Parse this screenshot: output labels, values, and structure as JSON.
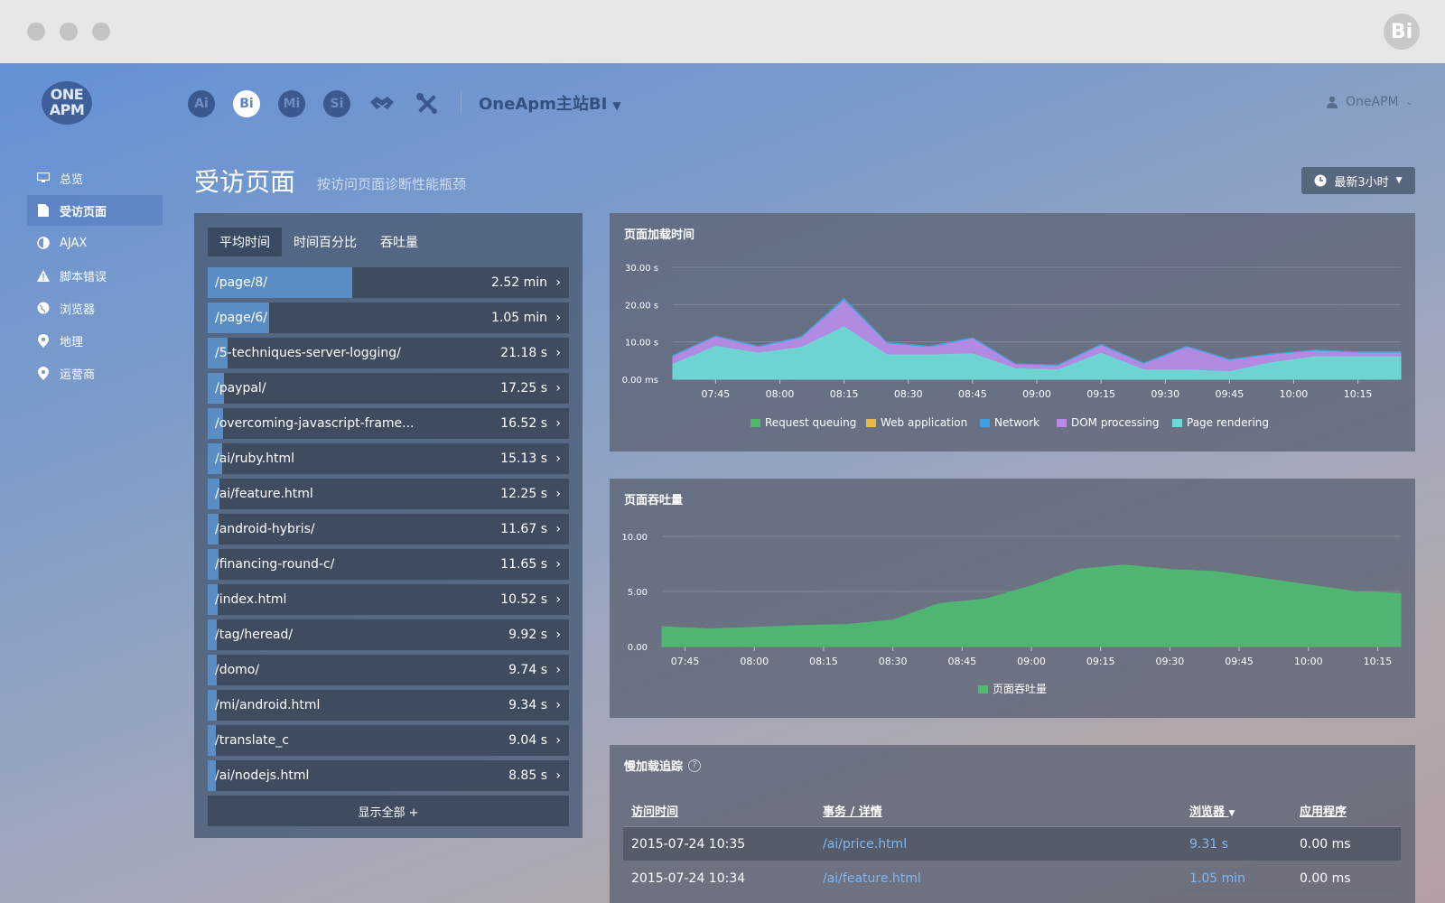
{
  "window": {
    "badge": "Bi"
  },
  "logo": {
    "line1": "ONE",
    "line2": "APM"
  },
  "product_nav": {
    "items": [
      {
        "label": "Ai",
        "icon": "ai-icon",
        "active": false
      },
      {
        "label": "Bi",
        "icon": "bi-icon",
        "active": true
      },
      {
        "label": "Mi",
        "icon": "mi-icon",
        "active": false
      },
      {
        "label": "Si",
        "icon": "si-icon",
        "active": false
      }
    ],
    "app_name": "OneApm主站BI"
  },
  "user": {
    "name": "OneAPM"
  },
  "sidebar": {
    "items": [
      {
        "label": "总览",
        "icon": "monitor-icon",
        "active": false
      },
      {
        "label": "受访页面",
        "icon": "document-icon",
        "active": true
      },
      {
        "label": "AJAX",
        "icon": "half-circle-icon",
        "active": false
      },
      {
        "label": "脚本错误",
        "icon": "warning-icon",
        "active": false
      },
      {
        "label": "浏览器",
        "icon": "globe-icon",
        "active": false
      },
      {
        "label": "地理",
        "icon": "map-pin-icon",
        "active": false
      },
      {
        "label": "运营商",
        "icon": "map-pin-icon",
        "active": false
      }
    ]
  },
  "page": {
    "title": "受访页面",
    "subtitle": "按访问页面诊断性能瓶颈",
    "time_range": "最新3小时"
  },
  "left_panel": {
    "tabs": [
      "平均时间",
      "时间百分比",
      "吞吐量"
    ],
    "active_tab": 0,
    "rows": [
      {
        "path": "/page/8/",
        "value": "2.52 min",
        "fill": 0.4
      },
      {
        "path": "/page/6/",
        "value": "1.05 min",
        "fill": 0.17
      },
      {
        "path": "/5-techniques-server-logging/",
        "value": "21.18 s",
        "fill": 0.055
      },
      {
        "path": "/paypal/",
        "value": "17.25 s",
        "fill": 0.045
      },
      {
        "path": "/overcoming-javascript-frame...",
        "value": "16.52 s",
        "fill": 0.043
      },
      {
        "path": "/ai/ruby.html",
        "value": "15.13 s",
        "fill": 0.04
      },
      {
        "path": "/ai/feature.html",
        "value": "12.25 s",
        "fill": 0.032
      },
      {
        "path": "/android-hybris/",
        "value": "11.67 s",
        "fill": 0.03
      },
      {
        "path": "/financing-round-c/",
        "value": "11.65 s",
        "fill": 0.03
      },
      {
        "path": "/index.html",
        "value": "10.52 s",
        "fill": 0.027
      },
      {
        "path": "/tag/heread/",
        "value": "9.92 s",
        "fill": 0.026
      },
      {
        "path": "/domo/",
        "value": "9.74 s",
        "fill": 0.025
      },
      {
        "path": "/mi/android.html",
        "value": "9.34 s",
        "fill": 0.024
      },
      {
        "path": "/translate_c",
        "value": "9.04 s",
        "fill": 0.023
      },
      {
        "path": "/ai/nodejs.html",
        "value": "8.85 s",
        "fill": 0.023
      }
    ],
    "show_all": "显示全部 +"
  },
  "colors": {
    "request_queuing": "#4cb86b",
    "web_application": "#e8b84a",
    "network": "#3aa0e8",
    "dom_processing": "#b58be6",
    "page_rendering": "#6fd9d6",
    "throughput": "#4fb872"
  },
  "chart_data": [
    {
      "type": "area",
      "title": "页面加载时间",
      "x": [
        "07:35",
        "07:45",
        "07:55",
        "08:05",
        "08:15",
        "08:25",
        "08:35",
        "08:45",
        "08:55",
        "09:05",
        "09:15",
        "09:25",
        "09:35",
        "09:45",
        "09:55",
        "10:05",
        "10:15",
        "10:25"
      ],
      "x_ticks": [
        "07:45",
        "08:00",
        "08:15",
        "08:30",
        "08:45",
        "09:00",
        "09:15",
        "09:30",
        "09:45",
        "10:00",
        "10:15"
      ],
      "y_ticks": [
        "0.00 ms",
        "10.00 s",
        "20.00 s",
        "30.00 s"
      ],
      "ylim": [
        0,
        30
      ],
      "stacked": true,
      "series": [
        {
          "name": "Request queuing",
          "values": [
            0,
            0,
            0,
            0,
            0,
            0,
            0,
            0,
            0,
            0,
            0,
            0,
            0,
            0,
            0,
            0,
            0,
            0
          ]
        },
        {
          "name": "Web application",
          "values": [
            0,
            0,
            0,
            0,
            0,
            0,
            0,
            0,
            0,
            0,
            0,
            0,
            0,
            0,
            0,
            0,
            0,
            0
          ]
        },
        {
          "name": "Network",
          "values": [
            0.3,
            0.3,
            0.3,
            0.3,
            0.6,
            0.3,
            0.3,
            0.3,
            0.3,
            0.3,
            0.3,
            0.3,
            0.3,
            0.3,
            0.3,
            0.3,
            0.3,
            0.3
          ]
        },
        {
          "name": "DOM processing",
          "values": [
            2.0,
            2.5,
            1.5,
            2.5,
            7.0,
            3.0,
            2.0,
            4.0,
            1.0,
            1.0,
            2.0,
            1.5,
            6.0,
            3.0,
            2.0,
            1.5,
            1.0,
            1.0
          ]
        },
        {
          "name": "Page rendering",
          "values": [
            4.0,
            8.8,
            7.0,
            8.5,
            14.0,
            6.5,
            6.5,
            6.8,
            2.8,
            2.5,
            7.0,
            2.5,
            2.5,
            2.0,
            4.5,
            6.0,
            6.0,
            6.0
          ]
        }
      ]
    },
    {
      "type": "area",
      "title": "页面吞吐量",
      "x": [
        "07:40",
        "07:50",
        "08:00",
        "08:10",
        "08:20",
        "08:30",
        "08:40",
        "08:50",
        "09:00",
        "09:10",
        "09:20",
        "09:30",
        "09:40",
        "09:50",
        "10:00",
        "10:10",
        "10:20"
      ],
      "x_ticks": [
        "07:45",
        "08:00",
        "08:15",
        "08:30",
        "08:45",
        "09:00",
        "09:15",
        "09:30",
        "09:45",
        "10:00",
        "10:15"
      ],
      "y_ticks": [
        "0.00",
        "5.00",
        "10.00"
      ],
      "ylim": [
        0,
        10
      ],
      "series": [
        {
          "name": "页面吞吐量",
          "values": [
            1.8,
            1.6,
            1.75,
            1.9,
            2.0,
            2.4,
            3.9,
            4.3,
            5.5,
            7.0,
            7.4,
            7.0,
            6.8,
            6.2,
            5.6,
            5.0,
            4.8
          ]
        }
      ]
    }
  ],
  "slow_trace": {
    "title": "慢加载追踪",
    "columns": [
      "访问时间",
      "事务 / 详情",
      "浏览器",
      "应用程序"
    ],
    "rows": [
      {
        "time": "2015-07-24 10:35",
        "detail": "/ai/price.html",
        "browser": "9.31 s",
        "app": "0.00 ms"
      },
      {
        "time": "2015-07-24 10:34",
        "detail": "/ai/feature.html",
        "browser": "1.05 min",
        "app": "0.00 ms"
      }
    ]
  }
}
